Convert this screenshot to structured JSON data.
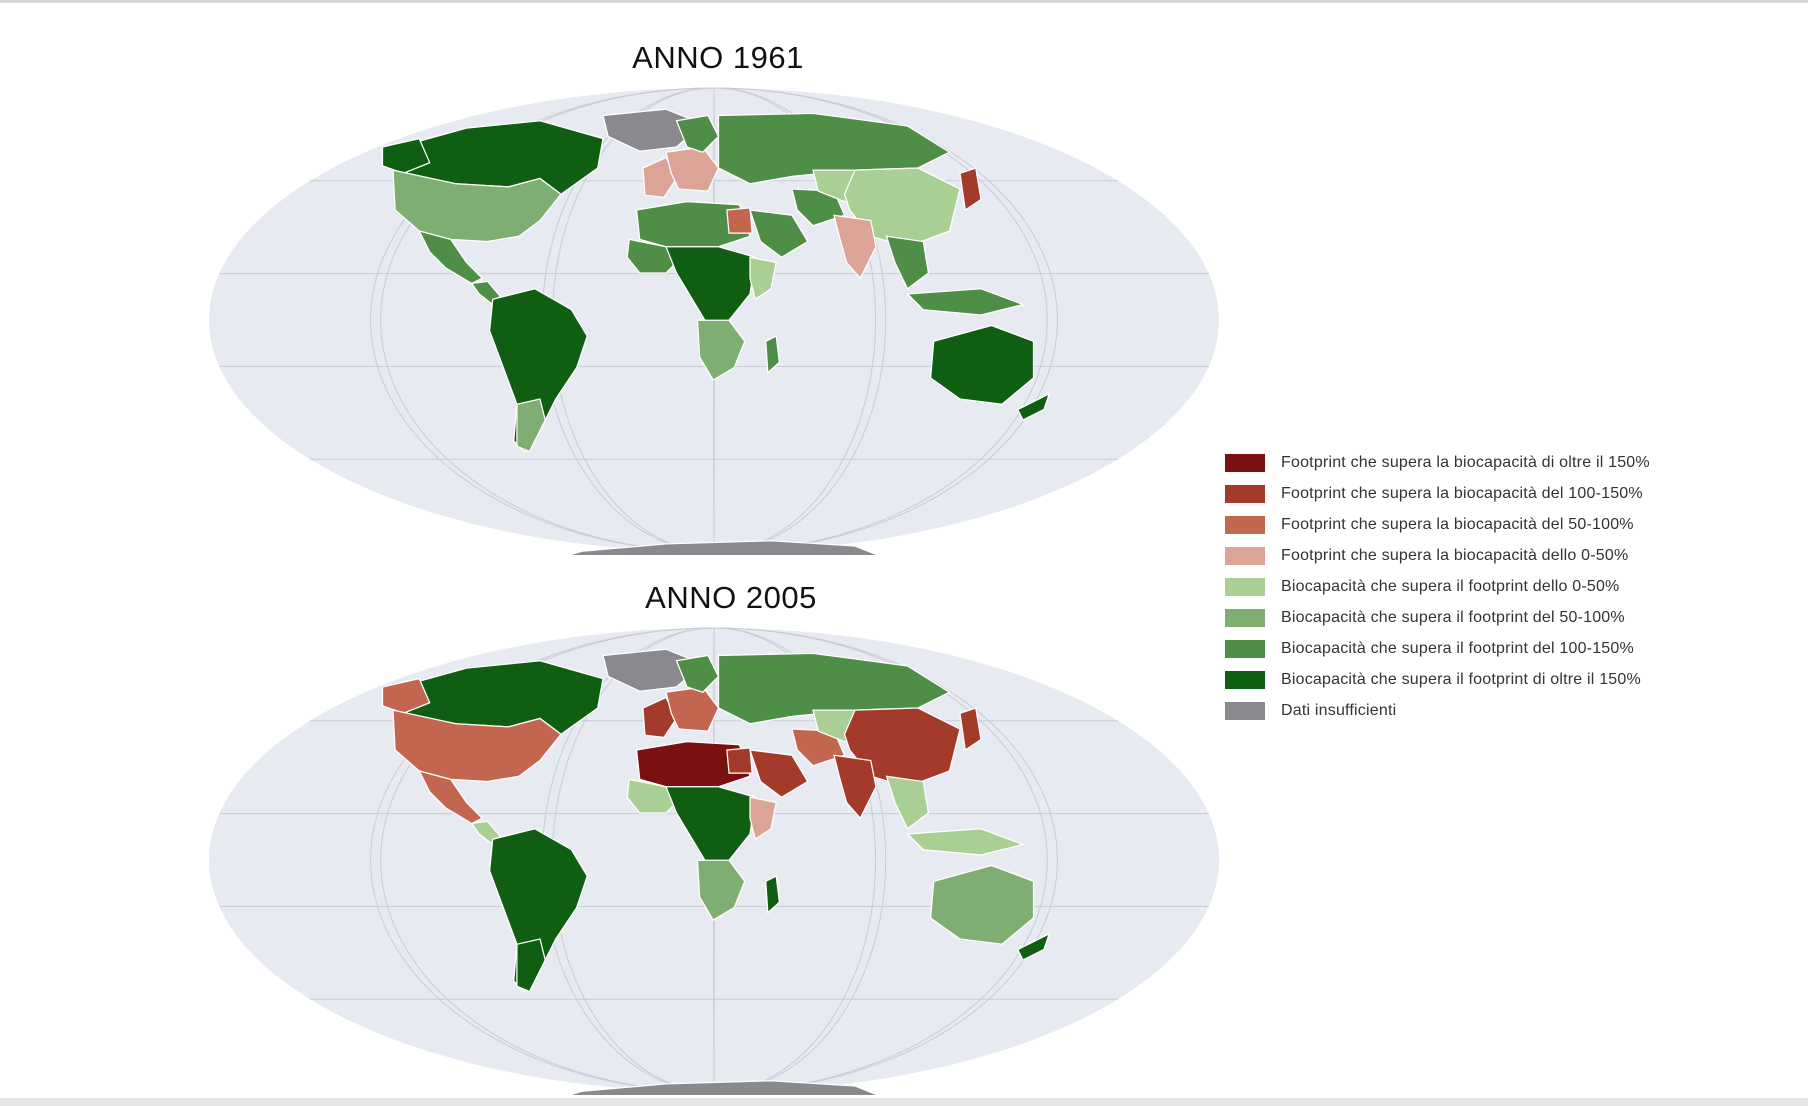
{
  "maps": [
    {
      "title": "ANNO 1961"
    },
    {
      "title": "ANNO 2005"
    }
  ],
  "colors": {
    "ocean": "#e8eaf2",
    "graticule": "#c9ccd6",
    "deficit_gt150": "#7b1010",
    "deficit_100_150": "#a33a2a",
    "deficit_50_100": "#c26650",
    "deficit_0_50": "#dba497",
    "reserve_0_50": "#a9cf95",
    "reserve_50_100": "#7fae72",
    "reserve_100_150": "#4e8e46",
    "reserve_gt150": "#0f5e12",
    "no_data": "#8a8a8e"
  },
  "legend": [
    {
      "label": "Footprint che supera la biocapacità di oltre il 150%",
      "color": "#7b1010"
    },
    {
      "label": "Footprint che supera la biocapacità del 100-150%",
      "color": "#a33a2a"
    },
    {
      "label": "Footprint che supera la biocapacità del 50-100%",
      "color": "#c26650"
    },
    {
      "label": "Footprint che supera la biocapacità dello 0-50%",
      "color": "#dba497"
    },
    {
      "label": "Biocapacità che supera il footprint dello 0-50%",
      "color": "#a9cf95"
    },
    {
      "label": "Biocapacità che supera il footprint del 50-100%",
      "color": "#7fae72"
    },
    {
      "label": "Biocapacità che supera il footprint del 100-150%",
      "color": "#4e8e46"
    },
    {
      "label": "Biocapacità che supera il footprint di oltre il 150%",
      "color": "#0f5e12"
    },
    {
      "label": "Dati insufficienti",
      "color": "#8a8a8e"
    }
  ]
}
